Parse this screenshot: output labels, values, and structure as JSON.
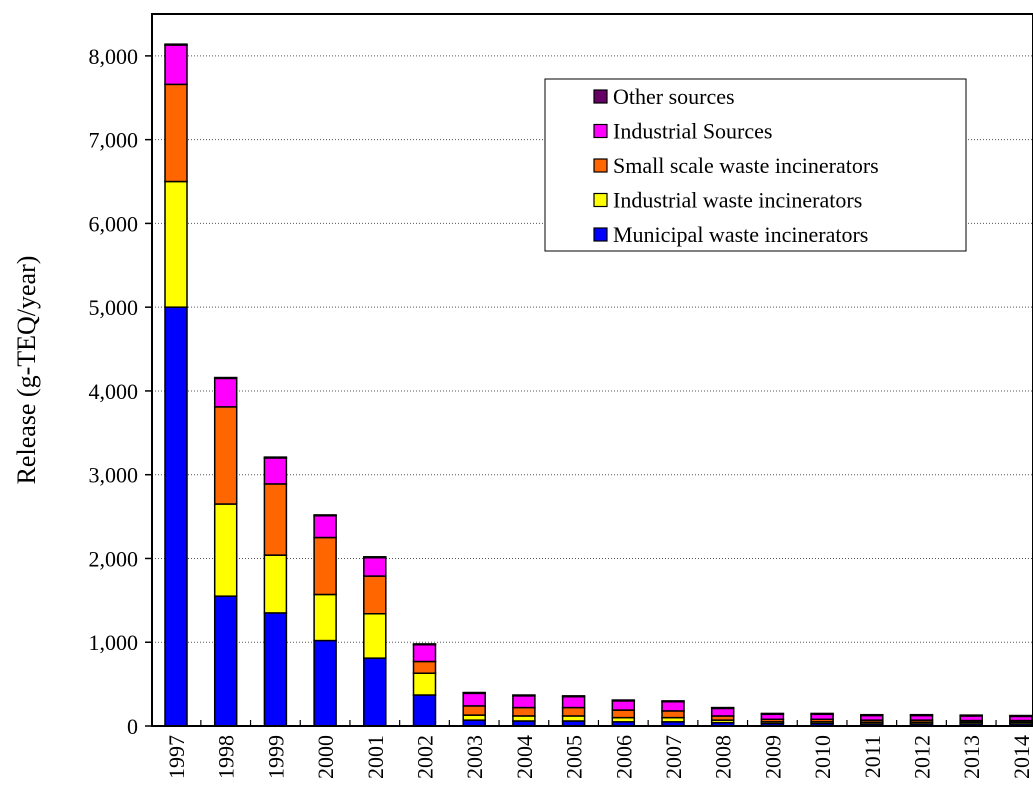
{
  "chart_data": {
    "type": "bar",
    "stacked": true,
    "title": "",
    "xlabel": "",
    "ylabel": "Release  (g-TEQ/year)",
    "ylim": [
      0,
      8500
    ],
    "yticks": [
      0,
      1000,
      2000,
      3000,
      4000,
      5000,
      6000,
      7000,
      8000
    ],
    "ytick_labels": [
      "0",
      "1,000",
      "2,000",
      "3,000",
      "4,000",
      "5,000",
      "6,000",
      "7,000",
      "8,000"
    ],
    "grid": "horizontal dotted",
    "legend_position": "top-right",
    "categories": [
      "1997",
      "1998",
      "1999",
      "2000",
      "2001",
      "2002",
      "2003",
      "2004",
      "2005",
      "2006",
      "2007",
      "2008",
      "2009",
      "2010",
      "2011",
      "2012",
      "2013",
      "2014"
    ],
    "series": [
      {
        "name": "Municipal waste incinerators",
        "color": "#0000ff",
        "values": [
          5000,
          1550,
          1350,
          1020,
          810,
          370,
          70,
          60,
          60,
          50,
          50,
          40,
          30,
          30,
          25,
          25,
          25,
          25
        ]
      },
      {
        "name": "Industrial waste incinerators",
        "color": "#ffff00",
        "values": [
          1500,
          1100,
          690,
          550,
          530,
          260,
          60,
          60,
          60,
          50,
          50,
          30,
          20,
          20,
          20,
          20,
          20,
          20
        ]
      },
      {
        "name": "Small scale waste incinerators",
        "color": "#ff6600",
        "values": [
          1160,
          1160,
          850,
          680,
          450,
          140,
          110,
          100,
          100,
          90,
          80,
          50,
          30,
          30,
          25,
          25,
          20,
          20
        ]
      },
      {
        "name": "Industrial Sources",
        "color": "#ff00ff",
        "values": [
          470,
          340,
          310,
          260,
          220,
          200,
          150,
          140,
          130,
          110,
          110,
          90,
          60,
          60,
          55,
          55,
          55,
          50
        ]
      },
      {
        "name": "Other sources",
        "color": "#660066",
        "values": [
          10,
          10,
          10,
          10,
          10,
          10,
          10,
          10,
          10,
          10,
          10,
          10,
          10,
          10,
          10,
          10,
          10,
          10
        ]
      }
    ]
  }
}
